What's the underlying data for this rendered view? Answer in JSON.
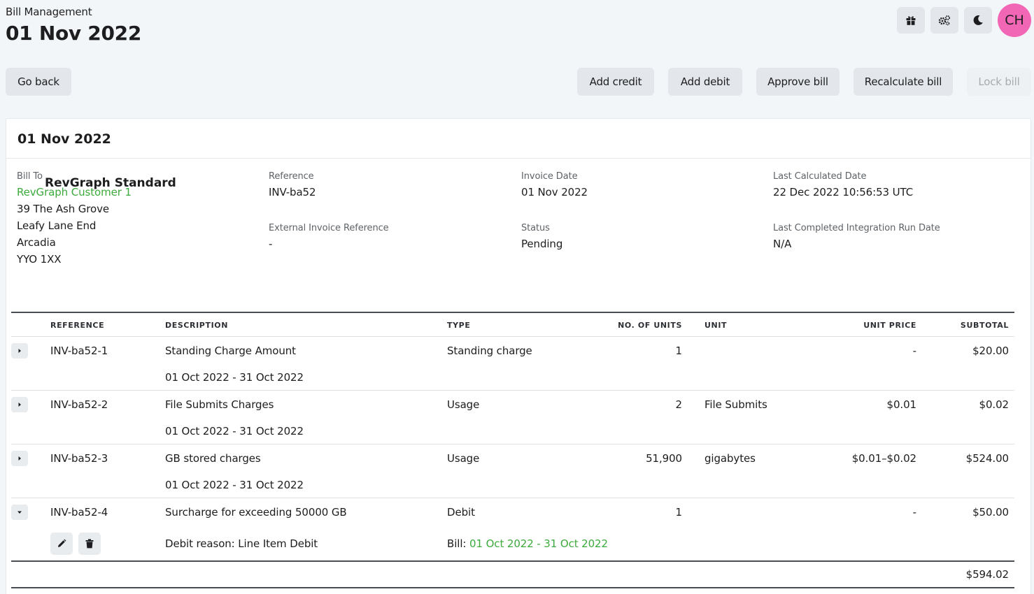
{
  "header": {
    "breadcrumb": "Bill Management",
    "title": "01 Nov 2022",
    "avatar_initials": "CH",
    "avatar_color": "#f266b6",
    "icons": [
      "gift-icon",
      "settings-icon",
      "moon-icon"
    ]
  },
  "actions": {
    "go_back": "Go back",
    "add_credit": "Add credit",
    "add_debit": "Add debit",
    "approve_bill": "Approve bill",
    "recalculate_bill": "Recalculate bill",
    "lock_bill": "Lock bill"
  },
  "card": {
    "title": "01 Nov 2022",
    "bill_to": {
      "label": "Bill To",
      "customer": "RevGraph Customer 1",
      "address": [
        "39 The Ash Grove",
        "Leafy Lane End",
        "Arcadia",
        "YYO 1XX"
      ]
    },
    "reference": {
      "label": "Reference",
      "value": "INV-ba52"
    },
    "external_reference": {
      "label": "External Invoice Reference",
      "value": "-"
    },
    "invoice_date": {
      "label": "Invoice Date",
      "value": "01 Nov 2022"
    },
    "status": {
      "label": "Status",
      "value": "Pending"
    },
    "last_calculated": {
      "label": "Last Calculated Date",
      "value": "22 Dec 2022 10:56:53 UTC"
    },
    "last_integration": {
      "label": "Last Completed Integration Run Date",
      "value": "N/A"
    }
  },
  "plan": {
    "name": "RevGraph Standard",
    "columns": {
      "reference": "REFERENCE",
      "description": "DESCRIPTION",
      "type": "TYPE",
      "units": "NO. OF UNITS",
      "unit": "UNIT",
      "unit_price": "UNIT PRICE",
      "subtotal": "SUBTOTAL"
    },
    "rows": [
      {
        "reference": "INV-ba52-1",
        "description": "Standing Charge Amount",
        "period": "01 Oct 2022 - 31 Oct 2022",
        "type": "Standing charge",
        "units": "1",
        "unit": "",
        "unit_price": "-",
        "subtotal": "$20.00"
      },
      {
        "reference": "INV-ba52-2",
        "description": "File Submits Charges",
        "period": "01 Oct 2022 - 31 Oct 2022",
        "type": "Usage",
        "units": "2",
        "unit": "File Submits",
        "unit_price": "$0.01",
        "subtotal": "$0.02"
      },
      {
        "reference": "INV-ba52-3",
        "description": "GB stored charges",
        "period": "01 Oct 2022 - 31 Oct 2022",
        "type": "Usage",
        "units": "51,900",
        "unit": "gigabytes",
        "unit_price": "$0.01–$0.02",
        "subtotal": "$524.00"
      },
      {
        "reference": "INV-ba52-4",
        "description": "Surcharge for exceeding 50000 GB",
        "debit_reason": "Debit reason: Line Item Debit",
        "bill_prefix": "Bill:",
        "bill_link": "01 Oct 2022 - 31 Oct 2022",
        "type": "Debit",
        "units": "1",
        "unit": "",
        "unit_price": "-",
        "subtotal": "$50.00"
      }
    ],
    "total": "$594.02"
  }
}
